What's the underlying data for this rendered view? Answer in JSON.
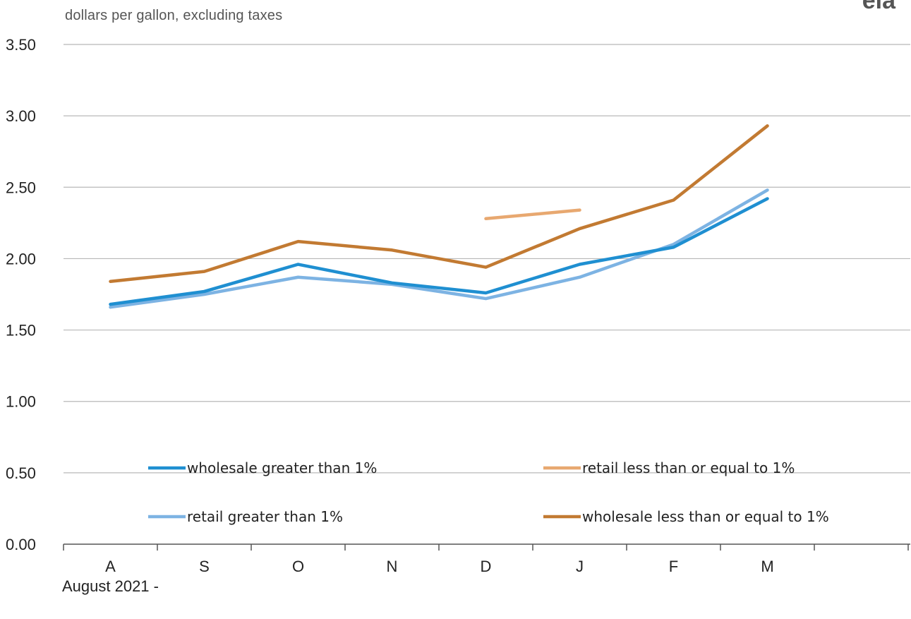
{
  "chart_data": {
    "type": "line",
    "ylabel": "dollars per gallon, excluding taxes",
    "xlabel": "August 2021  -",
    "logo": "eia",
    "categories": [
      "A",
      "S",
      "O",
      "N",
      "D",
      "J",
      "F",
      "M"
    ],
    "ylim": [
      0,
      3.5
    ],
    "yticks": [
      "0.00",
      "0.50",
      "1.00",
      "1.50",
      "2.00",
      "2.50",
      "3.00",
      "3.50"
    ],
    "grid": true,
    "series": [
      {
        "name": "wholesale greater than 1%",
        "color": "#1f8fd1",
        "values": [
          1.68,
          1.77,
          1.96,
          1.83,
          1.76,
          1.96,
          2.08,
          2.42
        ]
      },
      {
        "name": "retail less than or equal to 1%",
        "color": "#e8a870",
        "values": [
          null,
          null,
          null,
          null,
          2.28,
          2.34,
          null,
          null
        ]
      },
      {
        "name": "retail greater than 1%",
        "color": "#7db3e3",
        "values": [
          1.66,
          1.75,
          1.87,
          1.82,
          1.72,
          1.87,
          2.1,
          2.48
        ]
      },
      {
        "name": "wholesale less than or equal to 1%",
        "color": "#c27a32",
        "values": [
          1.84,
          1.91,
          2.12,
          2.06,
          1.94,
          2.21,
          2.41,
          2.93
        ]
      }
    ],
    "legend_order": [
      0,
      1,
      2,
      3
    ]
  }
}
